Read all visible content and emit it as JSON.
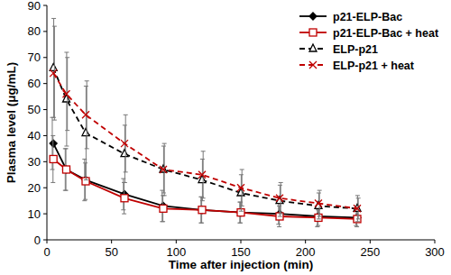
{
  "chart_data": {
    "type": "line",
    "x_label": "Time after injection (min)",
    "y_label": "Plasma level (μg/mL)",
    "x": [
      5,
      15,
      30,
      60,
      90,
      120,
      150,
      180,
      210,
      240
    ],
    "xlim": [
      0,
      300
    ],
    "xticks": [
      0,
      50,
      100,
      150,
      200,
      250,
      300
    ],
    "ylim": [
      0,
      90
    ],
    "yticks": [
      0,
      10,
      20,
      30,
      40,
      50,
      60,
      70,
      80,
      90
    ],
    "grid": false,
    "legend": "top-right",
    "series": [
      {
        "name": "p21-ELP-Bac",
        "color": "#000000",
        "marker": "diamond",
        "line_style": "solid",
        "values": [
          37,
          27,
          23,
          17.5,
          13,
          11.5,
          10.5,
          10,
          9,
          8.5
        ],
        "errors": [
          10,
          8,
          8,
          6,
          6,
          5,
          4,
          4,
          4,
          3
        ]
      },
      {
        "name": "p21-ELP-Bac + heat",
        "color": "#c00000",
        "marker": "square",
        "line_style": "solid",
        "values": [
          31,
          27,
          22.5,
          16,
          12,
          11.5,
          10.5,
          9,
          8.5,
          8
        ],
        "errors": [
          9,
          8,
          7,
          6,
          5,
          5,
          4,
          4,
          3,
          3
        ]
      },
      {
        "name": "ELP-p21",
        "color": "#000000",
        "marker": "triangle",
        "line_style": "dashed",
        "values": [
          66,
          54,
          41,
          33,
          27,
          23,
          18,
          15,
          13,
          12
        ],
        "errors": [
          19,
          18,
          18,
          11,
          9,
          8,
          7,
          6,
          5,
          5
        ]
      },
      {
        "name": "ELP-p21 + heat",
        "color": "#c00000",
        "marker": "x",
        "line_style": "dashed",
        "values": [
          64,
          56,
          48,
          37,
          27,
          25,
          20,
          16,
          14,
          12
        ],
        "errors": [
          18,
          14,
          13,
          11,
          10,
          9,
          7,
          6,
          5,
          4
        ]
      }
    ]
  }
}
